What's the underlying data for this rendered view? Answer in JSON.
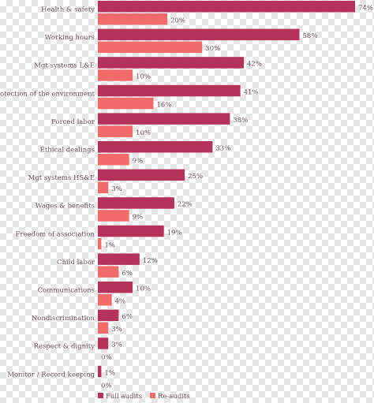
{
  "chart_data": {
    "type": "bar",
    "orientation": "horizontal",
    "title": "",
    "xlabel": "",
    "ylabel": "",
    "xlim": [
      0,
      74
    ],
    "grid": false,
    "legend_position": "bottom",
    "categories": [
      "Health & safety",
      "Working hours",
      "Mgt systems L&E",
      "Protection of the environment",
      "Forced labor",
      "Ethical dealings",
      "Mgt systems HS&E",
      "Wages & benefits",
      "Freedom of association",
      "Child labor",
      "Communications",
      "Nondiscrimination",
      "Respect & dignity",
      "Monitor / Record keeping"
    ],
    "series": [
      {
        "name": "Full audits",
        "color": "#b5335a",
        "values": [
          74,
          58,
          42,
          41,
          38,
          33,
          25,
          22,
          19,
          12,
          10,
          6,
          3,
          1
        ],
        "labels": [
          "74%",
          "58%",
          "42%",
          "41%",
          "38%",
          "33%",
          "25%",
          "22%",
          "19%",
          "12%",
          "10%",
          "6%",
          "3%",
          "1%"
        ]
      },
      {
        "name": "Re-audits",
        "color": "#f26b6b",
        "values": [
          20,
          30,
          10,
          16,
          10,
          9,
          3,
          9,
          1,
          6,
          4,
          3,
          0,
          0
        ],
        "labels": [
          "20%",
          "30%",
          "10%",
          "16%",
          "10%",
          "9%",
          "3%",
          "9%",
          "1%",
          "6%",
          "4%",
          "3%",
          "0%",
          "0%"
        ]
      }
    ]
  }
}
